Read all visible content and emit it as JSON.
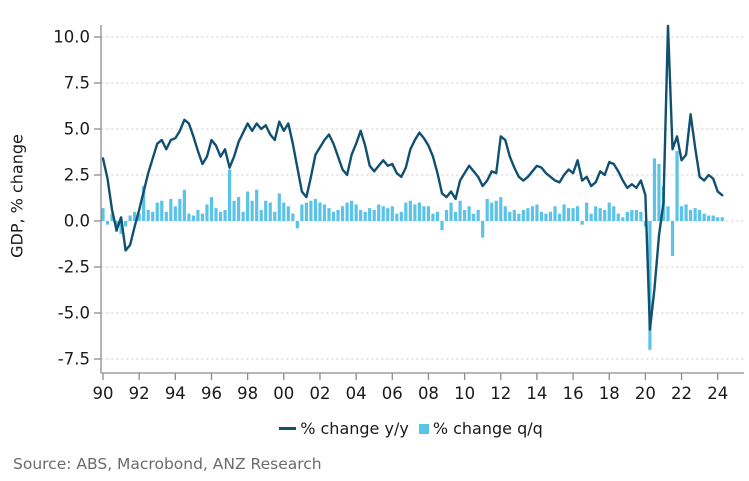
{
  "chart": {
    "ylabel": "GDP, % change",
    "source": "Source: ABS, Macrobond, ANZ Research"
  },
  "chart_data": {
    "type": "line+bar",
    "title": "",
    "xlabel": "",
    "ylabel": "GDP, % change",
    "x_frequency": "quarterly",
    "x_start": "1990Q1",
    "x_end": "2024Q2",
    "xticklabels": [
      "90",
      "92",
      "94",
      "96",
      "98",
      "00",
      "02",
      "04",
      "06",
      "08",
      "10",
      "12",
      "14",
      "16",
      "18",
      "20",
      "22",
      "24"
    ],
    "yticklabels": [
      "10.0",
      "7.5",
      "5.0",
      "2.5",
      "0.0",
      "-2.5",
      "-5.0",
      "-7.5"
    ],
    "ylim": [
      -8.3,
      10.7
    ],
    "grid": true,
    "legend_position": "bottom",
    "colors": {
      "line": "#11506f",
      "bar": "#5bc2e8",
      "grid": "#d4d4d4",
      "axis": "#8c8c8c",
      "tick_text": "#1a1a1a",
      "source_text": "#6b6b6b"
    },
    "series": [
      {
        "name": "% change y/y",
        "type": "line",
        "color": "#11506f",
        "values": [
          3.4,
          2.3,
          0.6,
          -0.5,
          0.2,
          -1.6,
          -1.3,
          -0.3,
          0.6,
          1.6,
          2.6,
          3.4,
          4.2,
          4.4,
          3.9,
          4.4,
          4.5,
          4.9,
          5.5,
          5.3,
          4.6,
          3.8,
          3.1,
          3.5,
          4.4,
          4.1,
          3.5,
          3.9,
          2.9,
          3.5,
          4.3,
          4.8,
          5.3,
          4.9,
          5.3,
          5.0,
          5.2,
          4.7,
          4.4,
          5.4,
          4.9,
          5.3,
          4.2,
          2.9,
          1.6,
          1.3,
          2.4,
          3.6,
          4.0,
          4.4,
          4.7,
          4.2,
          3.5,
          2.8,
          2.5,
          3.6,
          4.2,
          4.9,
          4.1,
          3.0,
          2.7,
          3.0,
          3.3,
          3.0,
          3.1,
          2.6,
          2.4,
          2.9,
          3.9,
          4.4,
          4.8,
          4.5,
          4.1,
          3.5,
          2.6,
          1.5,
          1.3,
          1.6,
          1.2,
          2.2,
          2.6,
          3.0,
          2.7,
          2.4,
          1.9,
          2.2,
          2.7,
          2.6,
          4.6,
          4.4,
          3.5,
          2.9,
          2.4,
          2.2,
          2.4,
          2.7,
          3.0,
          2.9,
          2.6,
          2.4,
          2.2,
          2.1,
          2.5,
          2.8,
          2.6,
          3.3,
          2.2,
          2.4,
          1.9,
          2.1,
          2.7,
          2.5,
          3.2,
          3.1,
          2.7,
          2.2,
          1.8,
          2.0,
          1.8,
          2.2,
          1.4,
          -5.9,
          -3.7,
          -0.8,
          1.0,
          10.6,
          3.9,
          4.6,
          3.3,
          3.6,
          5.8,
          4.0,
          2.4,
          2.2,
          2.5,
          2.3,
          1.6,
          1.4
        ]
      },
      {
        "name": "% change q/q",
        "type": "bar",
        "color": "#5bc2e8",
        "values": [
          0.7,
          -0.2,
          0.4,
          -0.6,
          -0.7,
          -0.3,
          0.3,
          0.5,
          0.4,
          1.9,
          0.6,
          0.5,
          1.0,
          1.1,
          0.5,
          1.2,
          0.8,
          1.2,
          1.7,
          0.4,
          0.3,
          0.6,
          0.4,
          0.9,
          1.3,
          0.7,
          0.5,
          0.6,
          2.8,
          1.1,
          1.3,
          0.5,
          1.6,
          1.1,
          1.7,
          0.6,
          1.1,
          1.0,
          0.5,
          1.5,
          1.0,
          0.8,
          0.4,
          -0.4,
          0.9,
          1.0,
          1.1,
          1.2,
          1.0,
          0.9,
          0.7,
          0.5,
          0.6,
          0.8,
          1.0,
          1.1,
          0.9,
          0.6,
          0.5,
          0.7,
          0.6,
          0.9,
          0.8,
          0.7,
          0.8,
          0.4,
          0.5,
          1.0,
          1.1,
          0.9,
          1.0,
          0.8,
          0.8,
          0.4,
          0.5,
          -0.5,
          0.6,
          1.0,
          0.5,
          1.1,
          0.6,
          0.8,
          0.4,
          0.6,
          -0.9,
          1.2,
          1.0,
          1.1,
          1.3,
          0.8,
          0.5,
          0.6,
          0.4,
          0.6,
          0.7,
          0.8,
          0.9,
          0.5,
          0.4,
          0.5,
          0.8,
          0.4,
          0.9,
          0.7,
          0.7,
          0.8,
          -0.2,
          1.0,
          0.4,
          0.8,
          0.7,
          0.6,
          1.0,
          0.8,
          0.4,
          0.2,
          0.5,
          0.6,
          0.6,
          0.5,
          -0.3,
          -7.0,
          3.4,
          3.1,
          1.9,
          0.8,
          -1.9,
          3.8,
          0.8,
          0.9,
          0.6,
          0.7,
          0.6,
          0.4,
          0.3,
          0.3,
          0.2,
          0.2
        ]
      }
    ]
  }
}
